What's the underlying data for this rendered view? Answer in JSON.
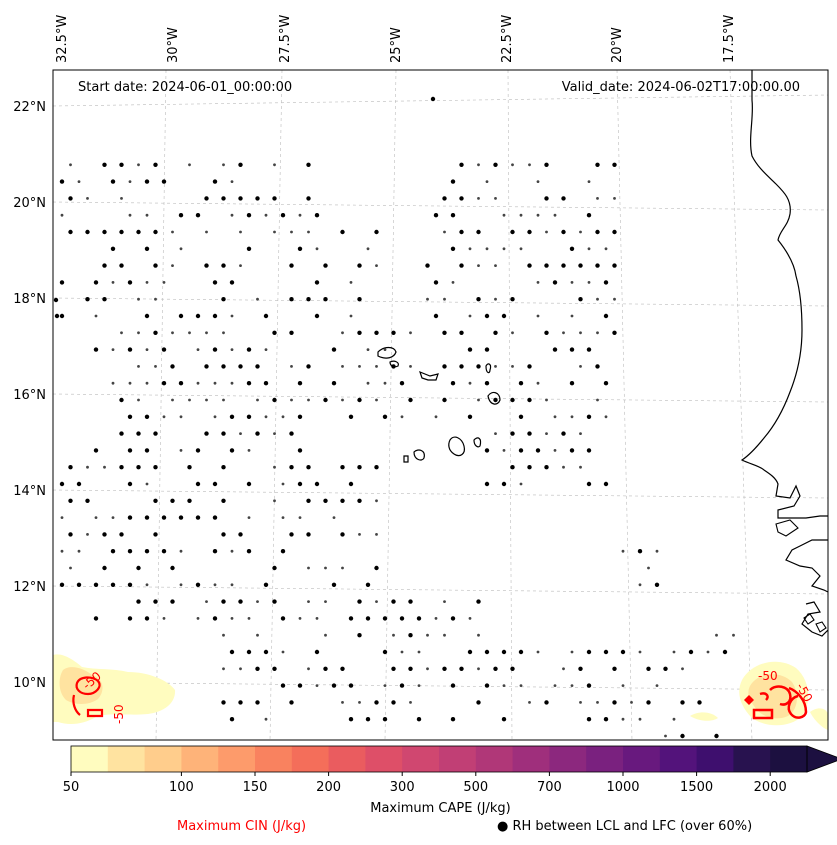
{
  "map": {
    "start_date": "Start date: 2024-06-01_00:00:00",
    "valid_date": "Valid_date: 2024-06-02T17:00:00.00",
    "lon_labels": [
      "32.5°W",
      "30°W",
      "27.5°W",
      "25°W",
      "22.5°W",
      "20°W",
      "17.5°W"
    ],
    "lat_labels": [
      "22°N",
      "20°N",
      "18°N",
      "16°N",
      "14°N",
      "12°N",
      "10°N"
    ],
    "contour_labels": [
      "-50",
      "-50",
      "-50",
      "-50"
    ]
  },
  "colorbar": {
    "title": "Maximum CAPE (J/kg)",
    "ticks": [
      "50",
      "100",
      "150",
      "200",
      "300",
      "500",
      "700",
      "1000",
      "1500",
      "2000"
    ],
    "colors": [
      "#fffcbf",
      "#ffe3a0",
      "#ffcd8c",
      "#feb379",
      "#fd9b6b",
      "#f9825f",
      "#f46e5a",
      "#ea5c5f",
      "#de4f68",
      "#d04770",
      "#c13f75",
      "#b03778",
      "#9f2f7c",
      "#8c287e",
      "#7a217f",
      "#68197e",
      "#53137b",
      "#3e0f6e",
      "#28124f",
      "#1c1040"
    ]
  },
  "legend": {
    "cin_label": "Maximum CIN (J/kg)",
    "cin_color": "#ff0000",
    "rh_label": "RH between LCL and LFC (over 60%)"
  }
}
